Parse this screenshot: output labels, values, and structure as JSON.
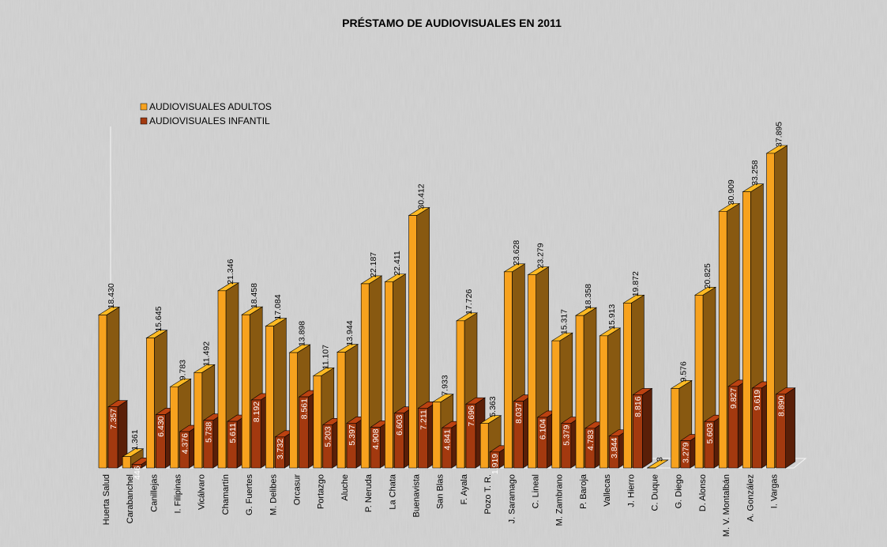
{
  "chart_data": {
    "type": "bar3d",
    "title": "PRÉSTAMO DE AUDIOVISUALES EN 2011",
    "categories": [
      "Huerta  Salud",
      "Carabanchel",
      "Canillejas",
      "I. Filipinas",
      "Vicálvaro",
      "Chamartín",
      "G. Fuertes",
      "M. Delibes",
      "Orcasur",
      "Portazgo",
      "Aluche",
      "P. Neruda",
      "La Chata",
      "Buenavista",
      "San Blas",
      "F. Ayala",
      "Pozo T. R.",
      "J. Saramago",
      "C. Lineal",
      "M. Zambrano",
      "P. Baroja",
      "Vallecas",
      "J. Hierro",
      "C. Duque",
      "G. Diego",
      "D. Alonso",
      "M. V. Montalbán",
      "A. González",
      "I. Vargas"
    ],
    "series": [
      {
        "name": "AUDIOVISUALES ADULTOS",
        "color": "#f7a21e",
        "values": [
          18430,
          1361,
          15645,
          9783,
          11492,
          21346,
          18458,
          17084,
          13898,
          11107,
          13944,
          22187,
          22411,
          30412,
          7933,
          17726,
          5363,
          23628,
          23279,
          15317,
          18358,
          15913,
          19872,
          3,
          9576,
          20825,
          30909,
          33258,
          37895
        ],
        "value_labels": [
          "18.430",
          "1.361",
          "15.645",
          "9.783",
          "11.492",
          "21.346",
          "18.458",
          "17.084",
          "13.898",
          "11.107",
          "13.944",
          "22.187",
          "22.411",
          "30.412",
          "7.933",
          "17.726",
          "5.363",
          "23.628",
          "23.279",
          "15.317",
          "18.358",
          "15.913",
          "19.872",
          "3",
          "9.576",
          "20.825",
          "30.909",
          "33.258",
          "37.895"
        ]
      },
      {
        "name": "AUDIOVISUALES INFANTIL",
        "color": "#a3390f",
        "values": [
          7357,
          446,
          6430,
          4376,
          5738,
          5611,
          8192,
          3732,
          8561,
          5203,
          5397,
          4908,
          6603,
          7211,
          4841,
          7696,
          1919,
          8037,
          6104,
          5379,
          4783,
          3844,
          8816,
          null,
          3279,
          5603,
          9827,
          9619,
          8890
        ],
        "value_labels": [
          "7.357",
          "446",
          "6.430",
          "4.376",
          "5.738",
          "5.611",
          "8.192",
          "3.732",
          "8.561",
          "5.203",
          "5.397",
          "4.908",
          "6.603",
          "7.211",
          "4.841",
          "7.696",
          "1.919",
          "8.037",
          "6.104",
          "5.379",
          "4.783",
          "3.844",
          "8.816",
          null,
          "3.279",
          "5.603",
          "9.827",
          "9.619",
          "8.890"
        ]
      }
    ],
    "legend": "top-left"
  }
}
